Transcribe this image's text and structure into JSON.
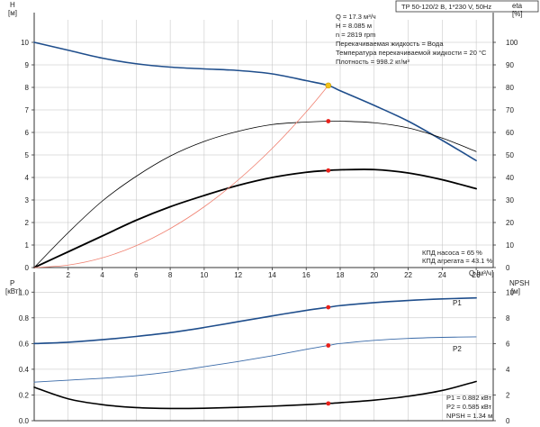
{
  "header": {
    "model": "TP 50-120/2 B, 1*230 V, 50Hz"
  },
  "info_top": [
    "Q = 17.3 м³/ч",
    "H = 8.085 м",
    "n = 2819 rpm",
    "Перекачиваемая жидкость = Вода",
    "Температура перекачиваемой жидкости = 20 °C",
    "Плотность = 998.2 кг/м³"
  ],
  "info_eff": [
    "КПД насоса = 65 %",
    "КПД агрегата = 43.1 %"
  ],
  "info_power": [
    "P1 = 0.882 кВт",
    "P2 = 0.585 кВт",
    "NPSH = 1.34 м"
  ],
  "colors": {
    "head": "#1f4e8c",
    "power1": "#1f4e8c",
    "power2": "#3a6aa8",
    "eff": "#000000",
    "system": "#f08070",
    "operating_point": "#e8201a",
    "duty_point": "#f2c21a",
    "grid": "#bfbfbf"
  },
  "chart_data": [
    {
      "type": "line",
      "title": "",
      "x_label": "Q [м³/ч]",
      "y_left_label": [
        "H",
        "[м]"
      ],
      "y_right_label": [
        "eta",
        "[%]"
      ],
      "x_range": [
        0,
        27
      ],
      "y_left_range": [
        0,
        11
      ],
      "y_right_range": [
        0,
        110
      ],
      "x_ticks": [
        2,
        4,
        6,
        8,
        10,
        12,
        14,
        16,
        18,
        20,
        22,
        24,
        26
      ],
      "y_left_ticks": [
        0,
        1,
        2,
        3,
        4,
        5,
        6,
        7,
        8,
        9,
        10
      ],
      "y_right_ticks": [
        0,
        10,
        20,
        30,
        40,
        50,
        60,
        70,
        80,
        90,
        100
      ],
      "grid": true,
      "series": [
        {
          "key": "H",
          "axis": "left",
          "style": "head",
          "x": [
            0,
            2,
            4,
            6,
            8,
            10,
            12,
            14,
            16,
            17.3,
            18,
            20,
            22,
            24,
            26
          ],
          "y": [
            10.0,
            9.65,
            9.3,
            9.05,
            8.9,
            8.82,
            8.75,
            8.6,
            8.3,
            8.085,
            7.85,
            7.2,
            6.5,
            5.65,
            4.75
          ]
        },
        {
          "key": "eta_pump",
          "axis": "right",
          "style": "eff_thin",
          "x": [
            0,
            2,
            4,
            6,
            8,
            10,
            12,
            14,
            16,
            17.3,
            18,
            20,
            22,
            24,
            26
          ],
          "y": [
            0,
            15.5,
            29.5,
            40.5,
            49.5,
            56,
            60.5,
            63.5,
            64.6,
            65,
            65,
            64.3,
            62,
            57.5,
            51.5
          ]
        },
        {
          "key": "eta_unit",
          "axis": "right",
          "style": "eff_thick",
          "x": [
            0,
            2,
            4,
            6,
            8,
            10,
            12,
            14,
            16,
            17.3,
            18,
            20,
            22,
            24,
            26
          ],
          "y": [
            0,
            7,
            14,
            21,
            27,
            32,
            36.5,
            40,
            42.3,
            43.1,
            43.4,
            43.5,
            42,
            39,
            35
          ]
        },
        {
          "key": "system",
          "axis": "left",
          "style": "system",
          "x": [
            0,
            2,
            4,
            6,
            8,
            10,
            12,
            14,
            16,
            17.3
          ],
          "y": [
            0,
            0.11,
            0.43,
            0.97,
            1.73,
            2.7,
            3.89,
            5.29,
            6.91,
            8.085
          ]
        }
      ],
      "points": [
        {
          "x": 17.3,
          "y": 8.085,
          "axis": "left",
          "style": "duty"
        },
        {
          "x": 17.3,
          "y": 65,
          "axis": "right",
          "style": "op"
        },
        {
          "x": 17.3,
          "y": 43.1,
          "axis": "right",
          "style": "op"
        }
      ]
    },
    {
      "type": "line",
      "title": "",
      "y_left_label": [
        "P",
        "[кВт]"
      ],
      "y_right_label": [
        "NPSH",
        "[м]"
      ],
      "x_range": [
        0,
        27
      ],
      "y_left_range": [
        0,
        1.1
      ],
      "y_right_range": [
        0,
        11
      ],
      "y_left_ticks": [
        0.0,
        0.2,
        0.4,
        0.6,
        0.8,
        1.0
      ],
      "y_left_tick_labels": [
        "0.0",
        "0.2",
        "0.4",
        "0.6",
        "0.8",
        "1.0"
      ],
      "y_right_ticks": [
        0,
        2,
        4,
        6,
        8,
        10
      ],
      "grid": true,
      "series": [
        {
          "key": "P1",
          "name": "P1",
          "axis": "left",
          "style": "power1",
          "x": [
            0,
            2,
            4,
            6,
            8,
            10,
            12,
            14,
            16,
            17.3,
            18,
            20,
            22,
            24,
            26
          ],
          "y": [
            0.6,
            0.61,
            0.63,
            0.655,
            0.685,
            0.725,
            0.77,
            0.815,
            0.858,
            0.882,
            0.895,
            0.918,
            0.935,
            0.947,
            0.955
          ]
        },
        {
          "key": "P2",
          "name": "P2",
          "axis": "left",
          "style": "power2",
          "x": [
            0,
            2,
            4,
            6,
            8,
            10,
            12,
            14,
            16,
            17.3,
            18,
            20,
            22,
            24,
            26
          ],
          "y": [
            0.3,
            0.315,
            0.33,
            0.35,
            0.38,
            0.42,
            0.46,
            0.505,
            0.555,
            0.585,
            0.6,
            0.625,
            0.64,
            0.648,
            0.652
          ]
        },
        {
          "key": "NPSH",
          "axis": "right",
          "style": "npsh",
          "x": [
            0,
            2,
            4,
            6,
            8,
            10,
            12,
            14,
            16,
            17.3,
            18,
            20,
            22,
            24,
            26
          ],
          "y": [
            2.6,
            1.7,
            1.25,
            1.02,
            0.95,
            0.97,
            1.04,
            1.13,
            1.25,
            1.34,
            1.4,
            1.6,
            1.9,
            2.35,
            3.05
          ]
        }
      ],
      "points": [
        {
          "x": 17.3,
          "y": 0.882,
          "axis": "left",
          "style": "op"
        },
        {
          "x": 17.3,
          "y": 0.585,
          "axis": "left",
          "style": "op"
        },
        {
          "x": 17.3,
          "y": 1.34,
          "axis": "right",
          "style": "op"
        }
      ]
    }
  ]
}
